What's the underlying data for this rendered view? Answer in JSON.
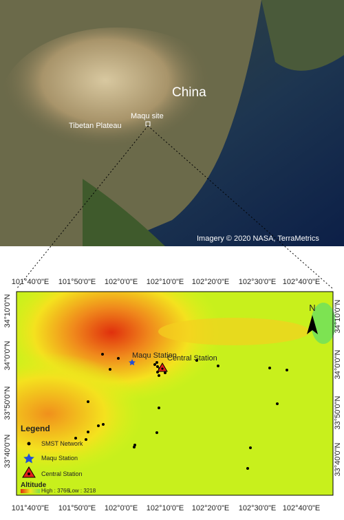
{
  "satellite": {
    "country": "China",
    "site": "Maqu site",
    "plateau": "Tibetan Plateau",
    "credit": "Imagery © 2020 NASA, TerraMetrics"
  },
  "map": {
    "top_ticks": [
      "101°40'0\"E",
      "101°50'0\"E",
      "102°0'0\"E",
      "102°10'0\"E",
      "102°20'0\"E",
      "102°30'0\"E",
      "102°40'0\"E"
    ],
    "bottom_ticks": [
      "101°40'0\"E",
      "101°50'0\"E",
      "102°0'0\"E",
      "102°10'0\"E",
      "102°20'0\"E",
      "102°30'0\"E",
      "102°40'0\"E"
    ],
    "left_ticks": [
      "34°10'0\"N",
      "34°0'0\"N",
      "33°50'0\"N",
      "33°40'0\"N"
    ],
    "right_ticks": [
      "34°10'0\"N",
      "34°0'0\"N",
      "33°50'0\"N",
      "33°40'0\"N"
    ],
    "labels": {
      "maqu": "Maqu Station",
      "central": "Central Station",
      "north": "N"
    },
    "legend": {
      "title": "Legend",
      "smst": "SMST Network",
      "maqu": "Maqu Station",
      "central": "Central Station",
      "altitude": "Altitude",
      "high": "High : 3766",
      "low": "Low : 3218"
    }
  }
}
